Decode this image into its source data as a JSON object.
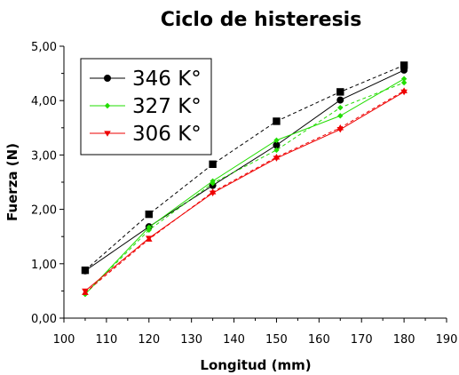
{
  "chart_data": {
    "type": "line",
    "title": "Ciclo de histeresis",
    "xlabel": "Longitud (mm)",
    "ylabel": "Fuerza (N)",
    "xlim": [
      100,
      190
    ],
    "ylim": [
      0,
      5
    ],
    "x_ticks": [
      100,
      110,
      120,
      130,
      140,
      150,
      160,
      170,
      180,
      190
    ],
    "x_tick_labels": [
      "100",
      "110",
      "120",
      "130",
      "140",
      "150",
      "160",
      "170",
      "180",
      "190"
    ],
    "y_ticks": [
      0,
      1,
      2,
      3,
      4,
      5
    ],
    "y_tick_labels": [
      "0,00",
      "1,00",
      "2,00",
      "3,00",
      "4,00",
      "5,00"
    ],
    "legend_position": "top-left",
    "grid": false,
    "x": [
      105,
      120,
      135,
      150,
      165,
      180
    ],
    "series": [
      {
        "name": "346 K°",
        "color": "#000000",
        "marker": "circle",
        "values": [
          0.87,
          1.68,
          2.44,
          3.18,
          4.01,
          4.56
        ],
        "return_marker": "square",
        "return_values": [
          0.88,
          1.91,
          2.83,
          3.62,
          4.16,
          4.65
        ]
      },
      {
        "name": "327 K°",
        "color": "#22dd00",
        "marker": "diamond",
        "values": [
          0.44,
          1.67,
          2.52,
          3.27,
          3.72,
          4.4
        ],
        "return_marker": "diamond",
        "return_values": [
          0.44,
          1.62,
          2.48,
          3.09,
          3.87,
          4.33
        ]
      },
      {
        "name": "306 K°",
        "color": "#ee0000",
        "marker": "triangle-down",
        "values": [
          0.5,
          1.47,
          2.3,
          2.94,
          3.47,
          4.16
        ],
        "return_marker": "triangle-up",
        "return_values": [
          0.47,
          1.45,
          2.32,
          2.96,
          3.5,
          4.18
        ]
      }
    ]
  }
}
